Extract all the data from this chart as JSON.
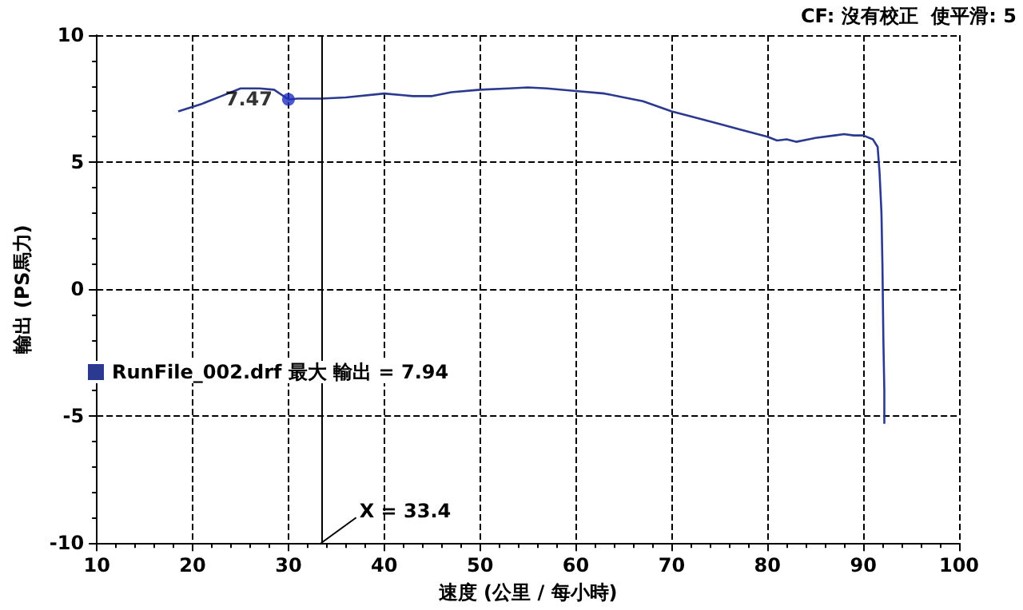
{
  "chart_data": {
    "type": "line",
    "xlabel": "速度 (公里 / 每小時)",
    "ylabel": "輸出 (PS馬力)",
    "annotations": [
      "CF: 沒有校正  使平滑: 5"
    ],
    "xlim": [
      10,
      100
    ],
    "xticks": [
      10,
      20,
      30,
      40,
      50,
      60,
      70,
      80,
      90,
      100
    ],
    "ylim": [
      -10,
      10
    ],
    "yticks": [
      -10,
      -5,
      0,
      5,
      10
    ],
    "grid": true,
    "legend": "left",
    "marker": "none",
    "line_style": "solid",
    "ref_lines": [
      {
        "axis": "x",
        "value": 33.4,
        "label": "X = 33.4",
        "color": "#000000"
      }
    ],
    "series": [
      {
        "name": "RunFile_002.drf 最大 輸出 = 7.94",
        "color": "#2b3990",
        "x": [
          18.5,
          21,
          23,
          25,
          27,
          28.5,
          30,
          31,
          33.4,
          36,
          40,
          43,
          45,
          47,
          50,
          53,
          55,
          57,
          60,
          63,
          65,
          67,
          70,
          72,
          75,
          77,
          80,
          81,
          82,
          83,
          85,
          87,
          88,
          89,
          90,
          91,
          91.5,
          91.7,
          91.9,
          92.0,
          92.1,
          92.2,
          92.2
        ],
        "values": [
          7.0,
          7.3,
          7.6,
          7.9,
          7.9,
          7.85,
          7.47,
          7.5,
          7.5,
          7.55,
          7.7,
          7.6,
          7.6,
          7.75,
          7.85,
          7.9,
          7.94,
          7.9,
          7.8,
          7.7,
          7.55,
          7.4,
          7.0,
          6.8,
          6.5,
          6.3,
          6.0,
          5.85,
          5.9,
          5.8,
          5.95,
          6.05,
          6.1,
          6.05,
          6.05,
          5.9,
          5.6,
          4.6,
          3.0,
          1.0,
          -2.0,
          -4.0,
          -5.3
        ]
      },
      {
        "type": "scatter",
        "color": "#1f2fbf",
        "x": [
          30
        ],
        "values": [
          7.47
        ],
        "value_labels": [
          "7.47"
        ],
        "marker": "circle"
      }
    ]
  }
}
